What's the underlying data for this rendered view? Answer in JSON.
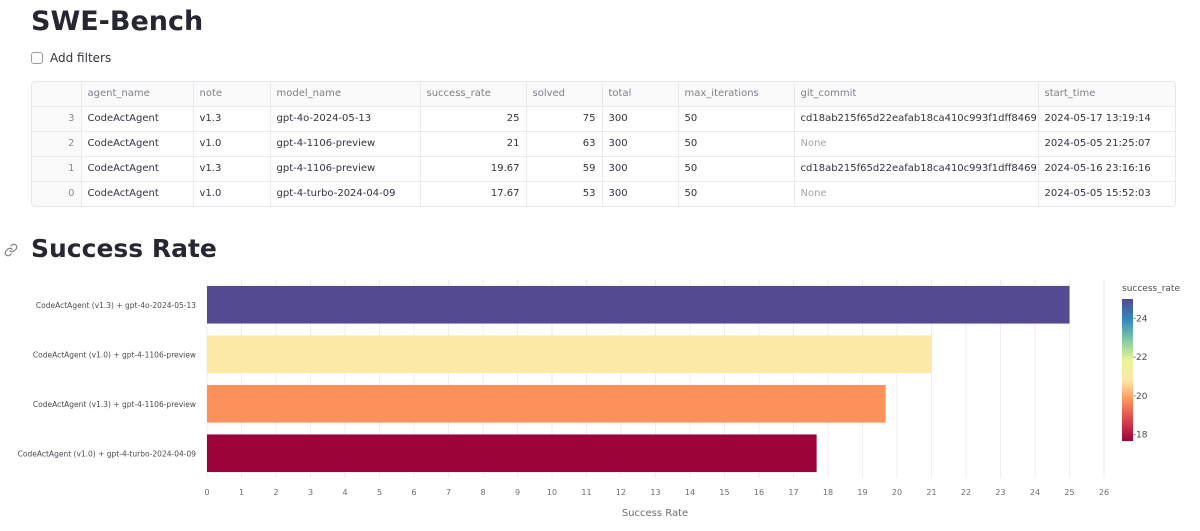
{
  "header": {
    "title": "SWE-Bench"
  },
  "filters": {
    "label": "Add filters",
    "checked": false
  },
  "table": {
    "columns": [
      "",
      "agent_name",
      "note",
      "model_name",
      "success_rate",
      "solved",
      "total",
      "max_iterations",
      "git_commit",
      "start_time"
    ],
    "rows": [
      {
        "index": "3",
        "agent_name": "CodeActAgent",
        "note": "v1.3",
        "model_name": "gpt-4o-2024-05-13",
        "success_rate": "25",
        "solved": "75",
        "total": "300",
        "max_iterations": "50",
        "git_commit": "cd18ab215f65d22eafab18ca410c993f1dff8469",
        "start_time": "2024-05-17 13:19:14"
      },
      {
        "index": "2",
        "agent_name": "CodeActAgent",
        "note": "v1.0",
        "model_name": "gpt-4-1106-preview",
        "success_rate": "21",
        "solved": "63",
        "total": "300",
        "max_iterations": "50",
        "git_commit": "None",
        "start_time": "2024-05-05 21:25:07"
      },
      {
        "index": "1",
        "agent_name": "CodeActAgent",
        "note": "v1.3",
        "model_name": "gpt-4-1106-preview",
        "success_rate": "19.67",
        "solved": "59",
        "total": "300",
        "max_iterations": "50",
        "git_commit": "cd18ab215f65d22eafab18ca410c993f1dff8469",
        "start_time": "2024-05-16 23:16:16"
      },
      {
        "index": "0",
        "agent_name": "CodeActAgent",
        "note": "v1.0",
        "model_name": "gpt-4-turbo-2024-04-09",
        "success_rate": "17.67",
        "solved": "53",
        "total": "300",
        "max_iterations": "50",
        "git_commit": "None",
        "start_time": "2024-05-05 15:52:03"
      }
    ]
  },
  "section": {
    "title": "Success Rate"
  },
  "chart_data": {
    "type": "bar",
    "orientation": "horizontal",
    "categories": [
      "CodeActAgent (v1.3) + gpt-4o-2024-05-13",
      "CodeActAgent (v1.0) + gpt-4-1106-preview",
      "CodeActAgent (v1.3) + gpt-4-1106-preview",
      "CodeActAgent (v1.0) + gpt-4-turbo-2024-04-09"
    ],
    "values": [
      25,
      21,
      19.67,
      17.67
    ],
    "bar_colors": [
      "#544a91",
      "#fde9a7",
      "#fc9259",
      "#9b0339"
    ],
    "xlabel": "Success Rate",
    "xlim": [
      0,
      26
    ],
    "xticks": [
      0,
      1,
      2,
      3,
      4,
      5,
      6,
      7,
      8,
      9,
      10,
      11,
      12,
      13,
      14,
      15,
      16,
      17,
      18,
      19,
      20,
      21,
      22,
      23,
      24,
      25,
      26
    ],
    "grid": true,
    "colorbar": {
      "title": "success_rate",
      "range": [
        17.67,
        25
      ],
      "ticks": [
        18,
        20,
        22,
        24
      ],
      "stops": [
        "#9b0339",
        "#d9414e",
        "#fc9259",
        "#fde9a7",
        "#e6f499",
        "#7fc8a4",
        "#3288bd",
        "#544a91"
      ]
    }
  }
}
